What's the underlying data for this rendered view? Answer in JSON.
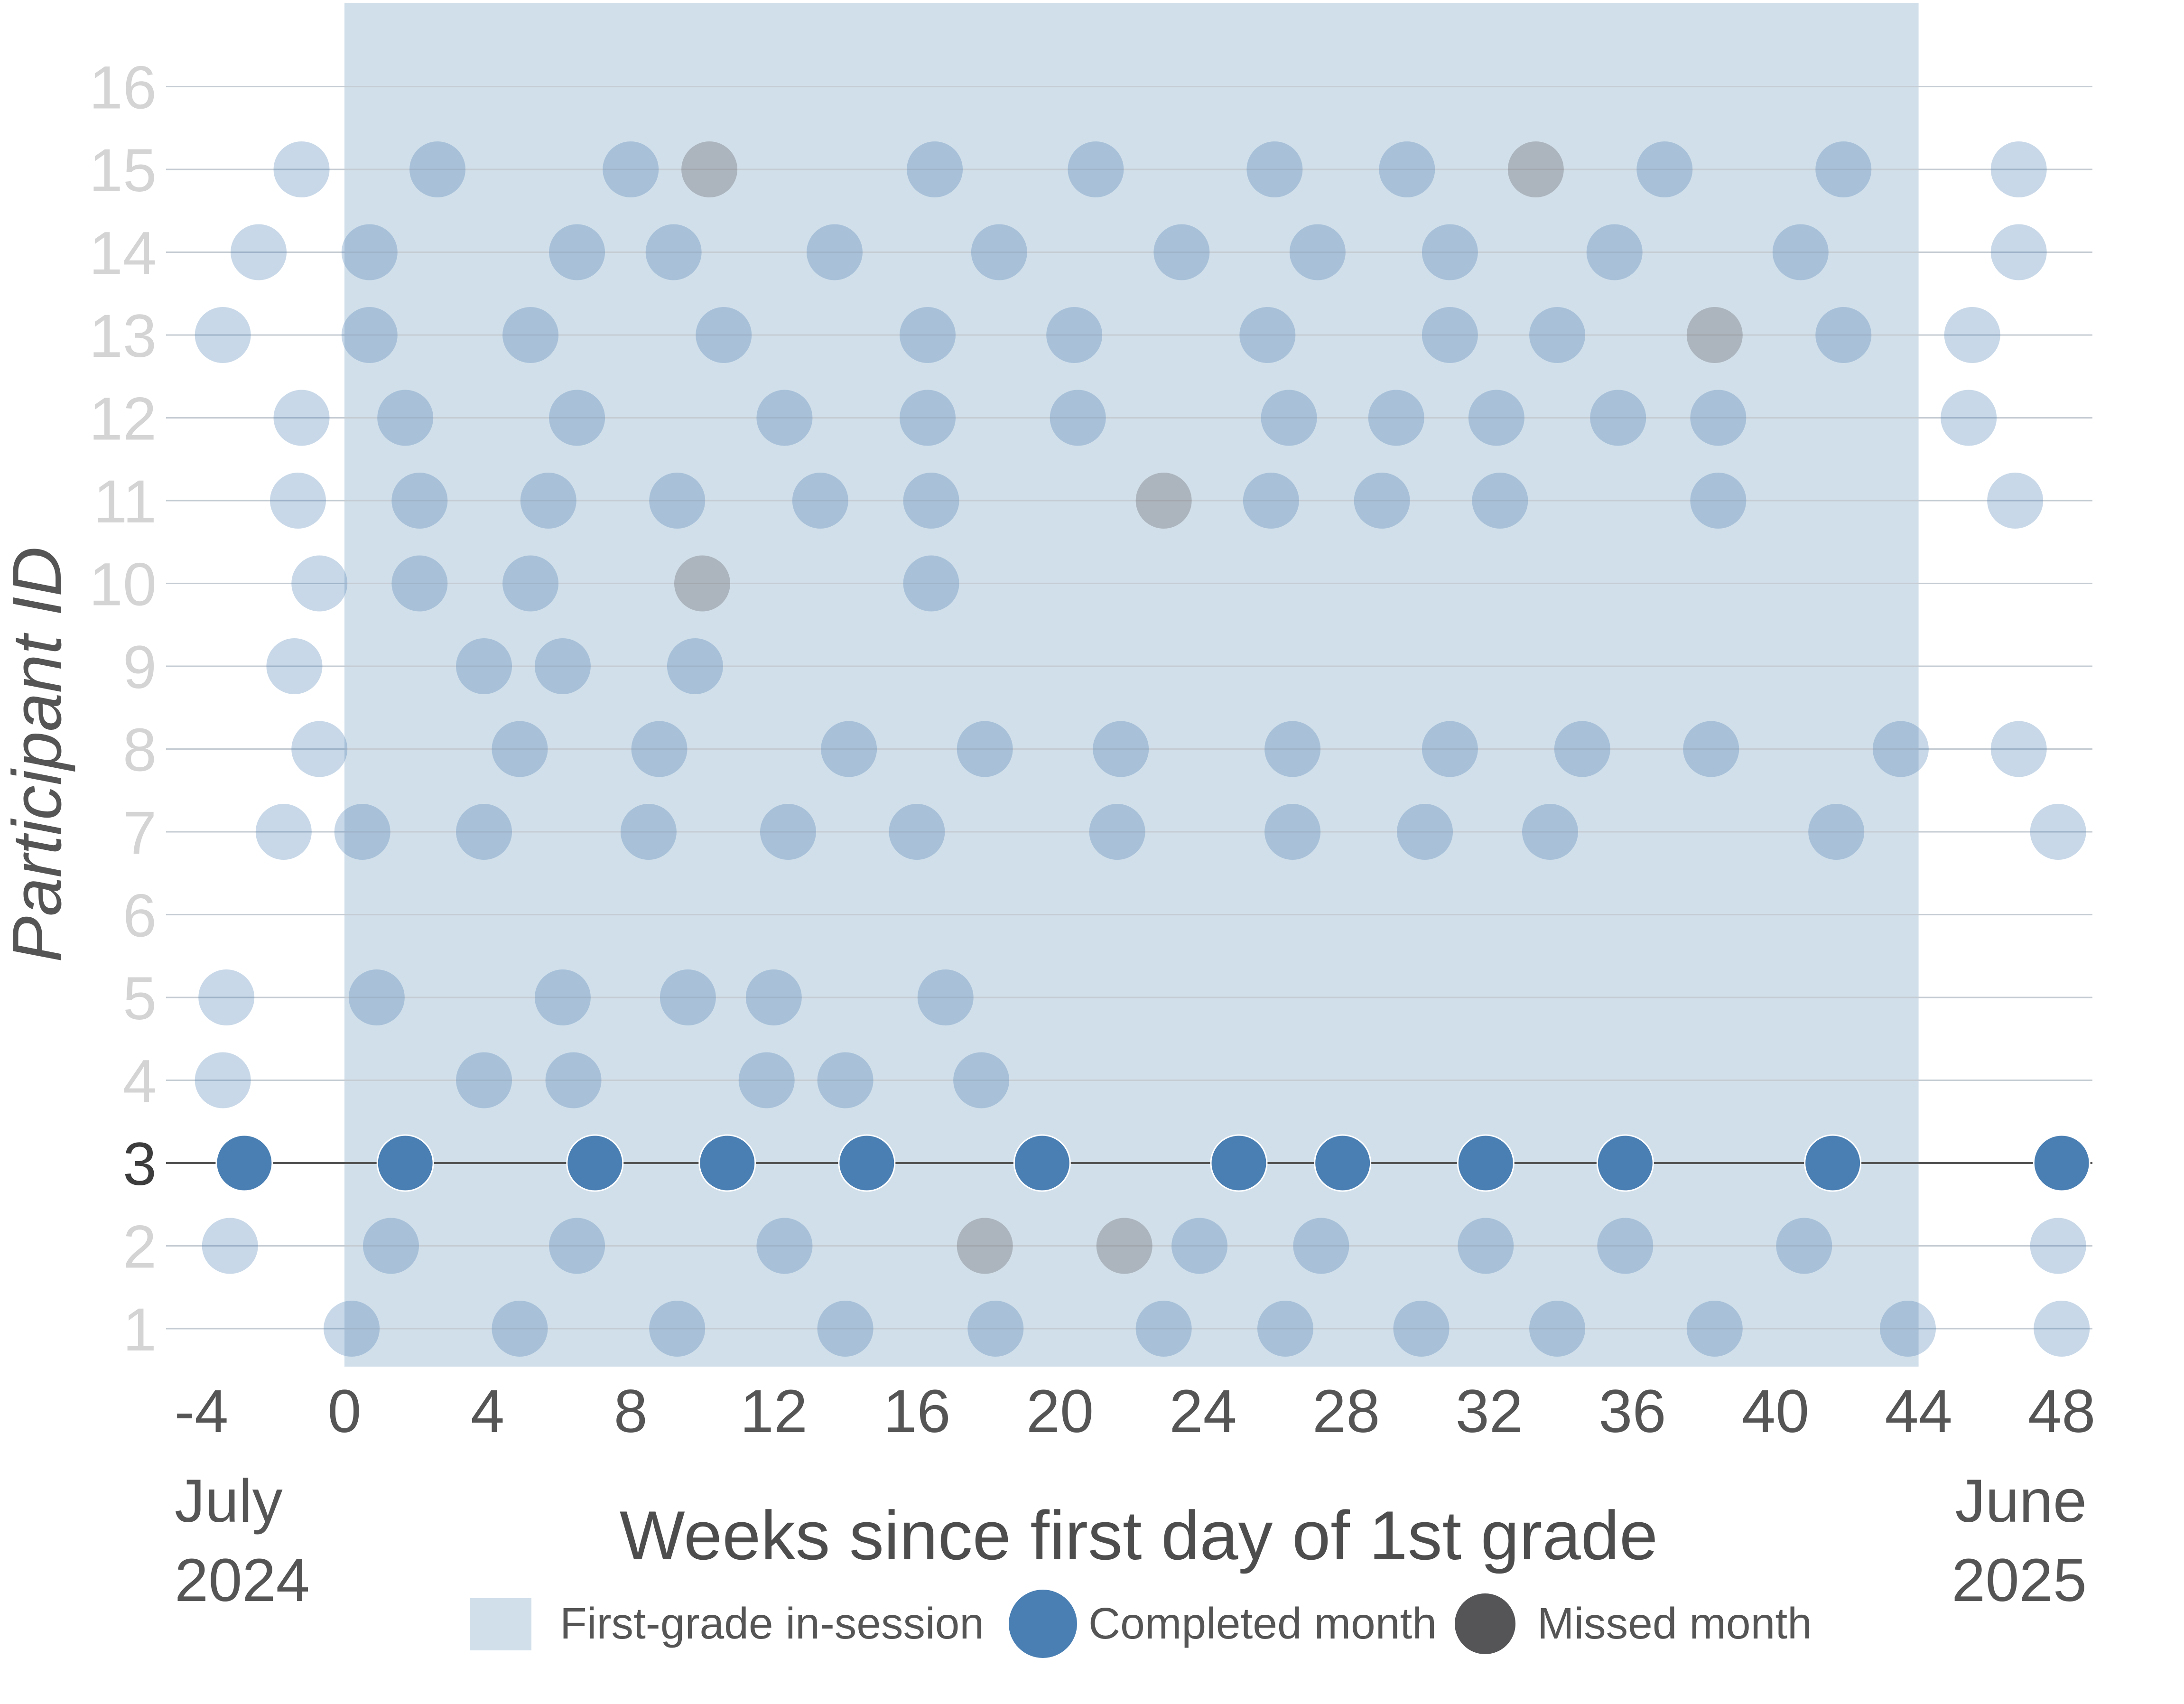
{
  "colors": {
    "session": "#d1dfea",
    "completed": "#4a7fb3",
    "missed": "#555558",
    "grid": "#c5ccd3",
    "highlight_line": "#555555",
    "tick": "#d4d4d4",
    "tick_highlight": "#3c3c3c",
    "text": "#555555"
  },
  "chart_data": {
    "type": "scatter",
    "xlabel": "Weeks since first day of 1st grade",
    "ylabel": "Participant ID",
    "xlim": [
      -4.5,
      49
    ],
    "ylim": [
      0.5,
      16.2
    ],
    "xticks": [
      "-4",
      "0",
      "4",
      "8",
      "12",
      "16",
      "20",
      "24",
      "28",
      "32",
      "36",
      "40",
      "44",
      "48"
    ],
    "xtick_values": [
      -4,
      0,
      4,
      8,
      12,
      16,
      20,
      24,
      28,
      32,
      36,
      40,
      44,
      48
    ],
    "yticks": [
      "1",
      "2",
      "3",
      "4",
      "5",
      "6",
      "7",
      "8",
      "9",
      "10",
      "11",
      "12",
      "13",
      "14",
      "15",
      "16"
    ],
    "ytick_values": [
      1,
      2,
      3,
      4,
      5,
      6,
      7,
      8,
      9,
      10,
      11,
      12,
      13,
      14,
      15,
      16
    ],
    "start_label": [
      "July",
      "2024"
    ],
    "end_label": [
      "June",
      "2025"
    ],
    "session_range": [
      0,
      44
    ],
    "highlighted_participant": 3,
    "legend": {
      "session": "First-grade in-session",
      "completed": "Completed month",
      "missed": "Missed month"
    },
    "participants": [
      {
        "id": 1,
        "completed": [
          0.2,
          4.9,
          9.3,
          14.0,
          18.2,
          22.9,
          26.3,
          30.1,
          33.9,
          38.3,
          43.7,
          48.0
        ],
        "missed": []
      },
      {
        "id": 2,
        "completed": [
          -3.2,
          1.3,
          6.5,
          12.3,
          23.9,
          27.3,
          31.9,
          35.8,
          40.8,
          47.9
        ],
        "missed": [
          17.9,
          21.8
        ]
      },
      {
        "id": 3,
        "completed": [
          -2.8,
          1.7,
          7.0,
          10.7,
          14.6,
          19.5,
          25.0,
          27.9,
          31.9,
          35.8,
          41.6,
          48.0
        ],
        "missed": []
      },
      {
        "id": 4,
        "completed": [
          -3.4,
          3.9,
          6.4,
          11.8,
          14.0,
          17.8
        ],
        "missed": []
      },
      {
        "id": 5,
        "completed": [
          -3.3,
          0.9,
          6.1,
          9.6,
          12.0,
          16.8
        ],
        "missed": []
      },
      {
        "id": 7,
        "completed": [
          -1.7,
          0.5,
          3.9,
          8.5,
          12.4,
          16.0,
          21.6,
          26.5,
          30.2,
          33.7,
          41.7,
          47.9
        ],
        "missed": []
      },
      {
        "id": 8,
        "completed": [
          -0.7,
          4.9,
          8.8,
          14.1,
          17.9,
          21.7,
          26.5,
          30.9,
          34.6,
          38.2,
          43.5,
          46.8
        ],
        "missed": []
      },
      {
        "id": 9,
        "completed": [
          -1.4,
          3.9,
          6.1,
          9.8
        ],
        "missed": []
      },
      {
        "id": 10,
        "completed": [
          -0.7,
          2.1,
          5.2,
          16.4
        ],
        "missed": [
          10.0
        ]
      },
      {
        "id": 11,
        "completed": [
          -1.3,
          2.1,
          5.7,
          9.3,
          13.3,
          16.4,
          25.9,
          29.0,
          32.3,
          38.4,
          46.7
        ],
        "missed": [
          22.9
        ]
      },
      {
        "id": 12,
        "completed": [
          -1.2,
          1.7,
          6.5,
          12.3,
          16.3,
          20.5,
          26.4,
          29.4,
          32.2,
          35.6,
          38.4,
          45.4
        ],
        "missed": []
      },
      {
        "id": 13,
        "completed": [
          -3.4,
          0.7,
          5.2,
          10.6,
          16.3,
          20.4,
          25.8,
          30.9,
          33.9,
          41.9,
          45.5
        ],
        "missed": [
          38.3
        ]
      },
      {
        "id": 14,
        "completed": [
          -2.4,
          0.7,
          6.5,
          9.2,
          13.7,
          18.3,
          23.4,
          27.2,
          30.9,
          35.5,
          40.7,
          46.8
        ],
        "missed": []
      },
      {
        "id": 15,
        "completed": [
          -1.2,
          2.6,
          8.0,
          16.5,
          21.0,
          26.0,
          29.7,
          36.9,
          41.9,
          46.8
        ],
        "missed": [
          10.2,
          33.3
        ]
      }
    ]
  }
}
